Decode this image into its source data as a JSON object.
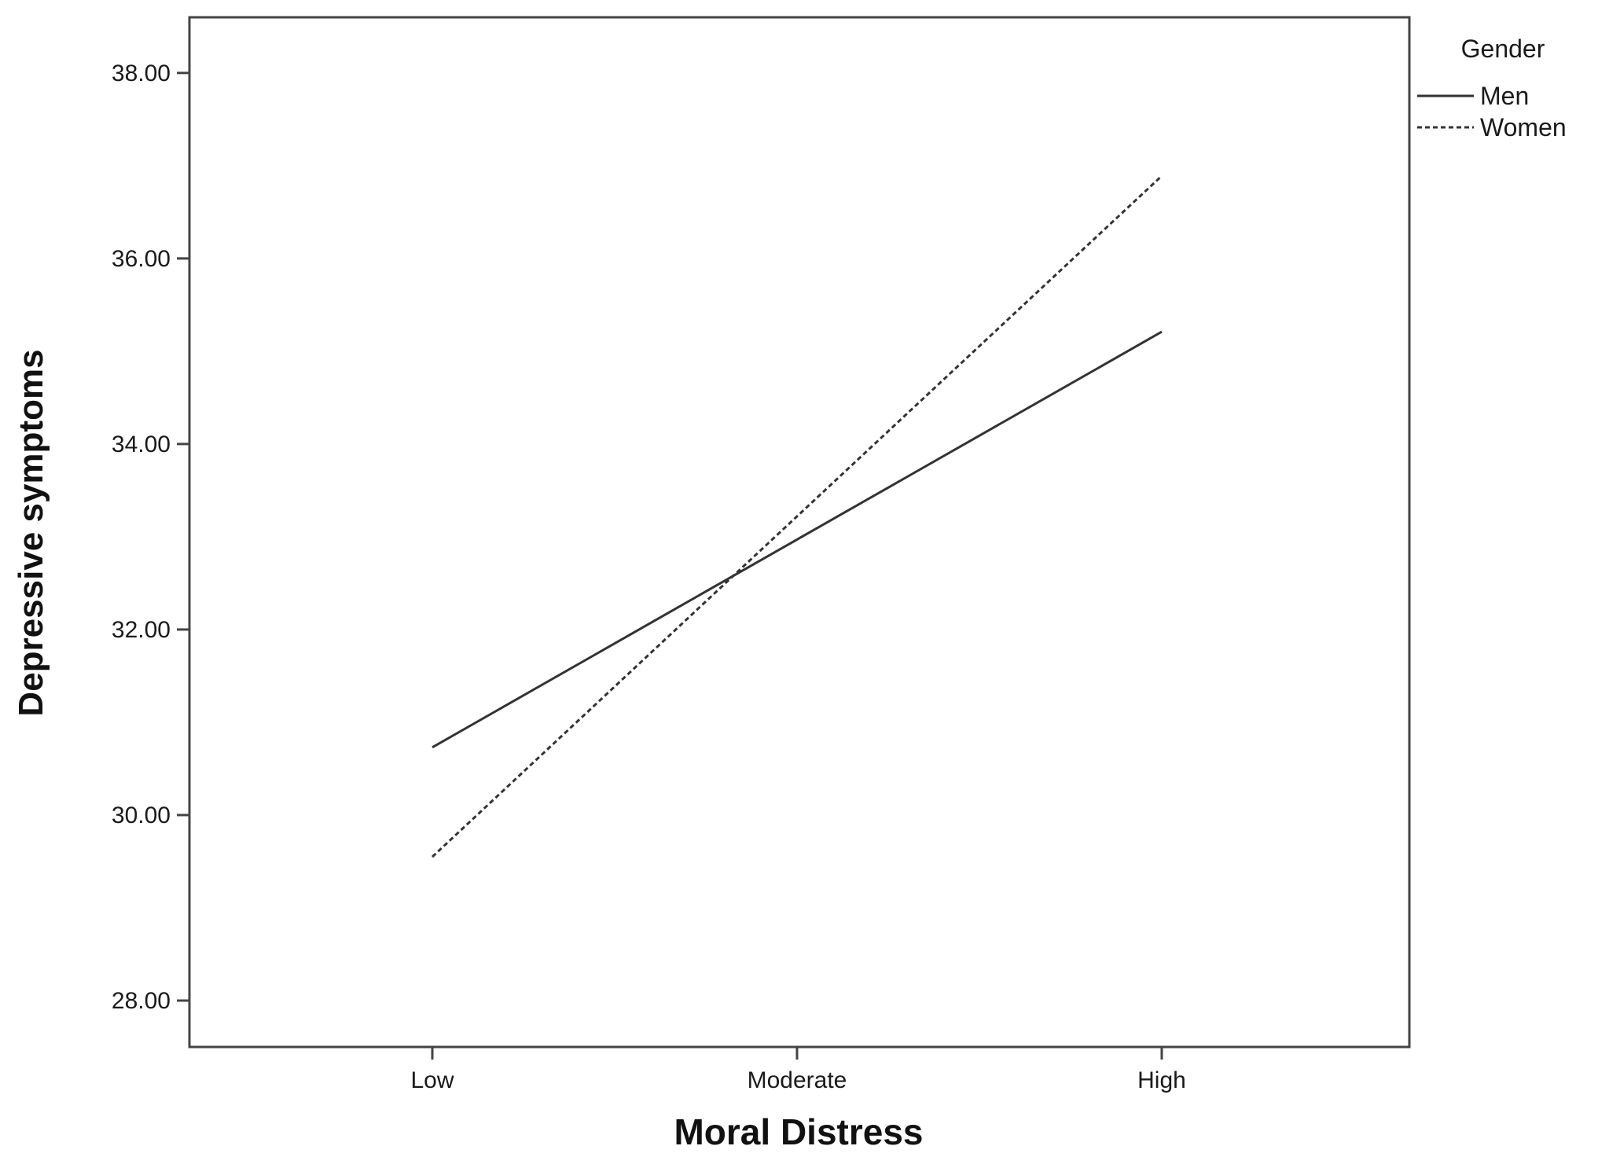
{
  "chart_data": {
    "type": "line",
    "title": "",
    "xlabel": "Moral Distress",
    "ylabel": "Depressive symptoms",
    "categories": [
      "Low",
      "Moderate",
      "High"
    ],
    "ylim": [
      27.5,
      38.6
    ],
    "yticks": [
      28,
      30,
      32,
      34,
      36,
      38
    ],
    "ytick_labels": [
      "28.00",
      "30.00",
      "32.00",
      "34.00",
      "36.00",
      "38.00"
    ],
    "grid": false,
    "legend": {
      "title": "Gender",
      "placement": "right-outside-top"
    },
    "series": [
      {
        "name": "Men",
        "values": [
          30.73,
          32.97,
          35.21
        ],
        "style": "solid",
        "color": "#333333"
      },
      {
        "name": "Women",
        "values": [
          29.55,
          33.22,
          36.89
        ],
        "style": "dashed",
        "color": "#333333"
      }
    ]
  }
}
